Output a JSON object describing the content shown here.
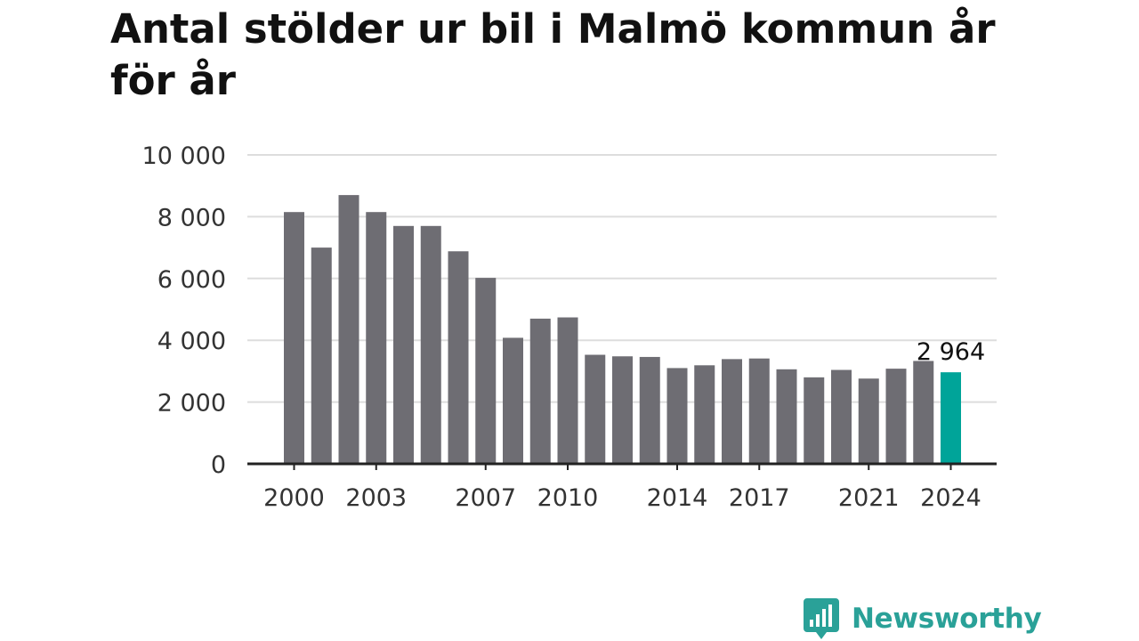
{
  "chart_data": {
    "type": "bar",
    "title": "Antal stölder ur bil i Malmö kommun år för år",
    "xlabel": "",
    "ylabel": "",
    "x": [
      2000,
      2001,
      2002,
      2003,
      2004,
      2005,
      2006,
      2007,
      2008,
      2009,
      2010,
      2011,
      2012,
      2013,
      2014,
      2015,
      2016,
      2017,
      2018,
      2019,
      2020,
      2021,
      2022,
      2023,
      2024
    ],
    "values": [
      8150,
      7000,
      8700,
      8150,
      7700,
      7700,
      6880,
      6020,
      4080,
      4700,
      4740,
      3530,
      3480,
      3460,
      3100,
      3190,
      3390,
      3410,
      3060,
      2800,
      3040,
      2760,
      3080,
      3330,
      2964
    ],
    "ylim": [
      0,
      10000
    ],
    "y_ticks": [
      "0",
      "2 000",
      "4 000",
      "6 000",
      "8 000",
      "10 000"
    ],
    "y_tick_values": [
      0,
      2000,
      4000,
      6000,
      8000,
      10000
    ],
    "x_ticks": [
      "2000",
      "2003",
      "2007",
      "2010",
      "2014",
      "2017",
      "2021",
      "2024"
    ],
    "x_tick_values": [
      2000,
      2003,
      2007,
      2010,
      2014,
      2017,
      2021,
      2024
    ],
    "highlight": {
      "year": 2024,
      "label": "2 964"
    },
    "grid": true,
    "colors": {
      "bar": "#6e6d73",
      "highlight": "#00a499",
      "grid": "#dddddd",
      "axis": "#222222"
    }
  },
  "branding": {
    "logo_text": "Newsworthy",
    "logo_color": "#2aa198",
    "logo_icon": "bar-chart-speech-bubble-icon"
  }
}
